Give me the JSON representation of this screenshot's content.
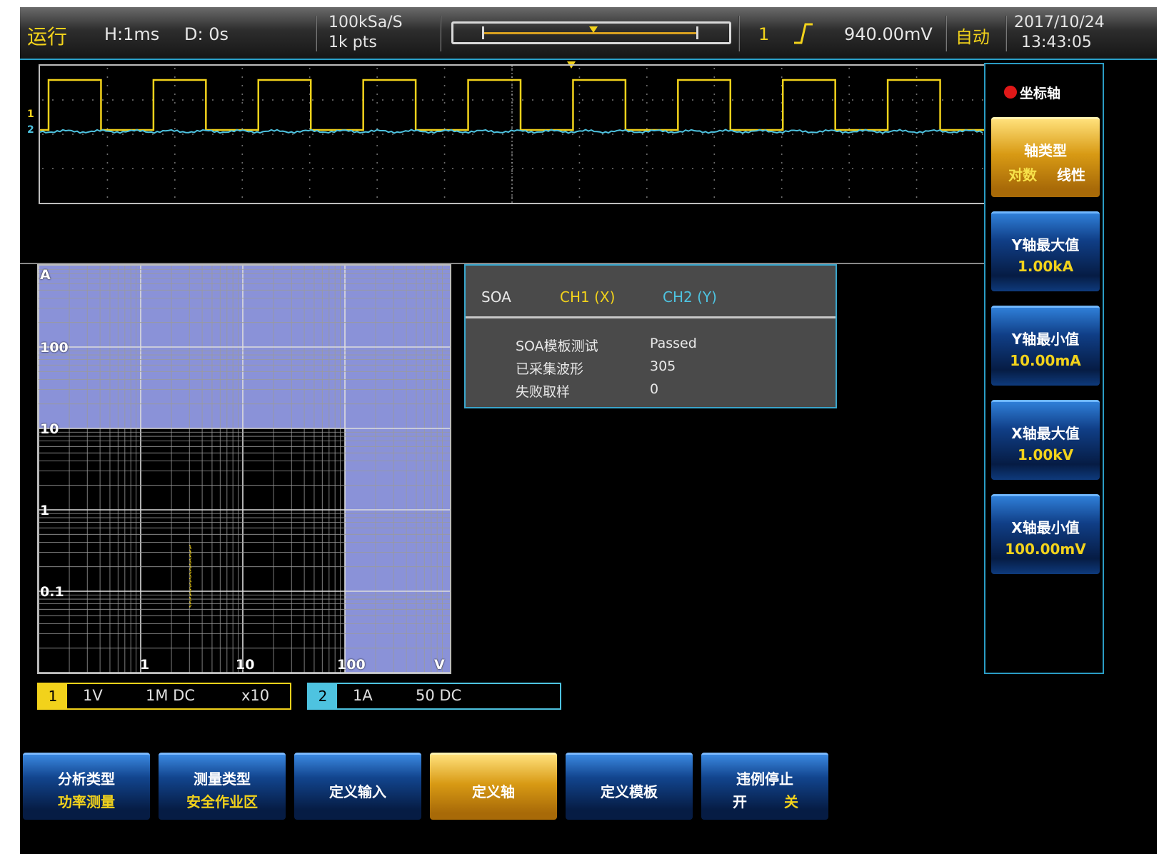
{
  "status_bar": {
    "run_state": "运行",
    "horizontal_scale": "H:1ms",
    "delay": "D: 0s",
    "sample_rate": "100kSa/S",
    "memory_depth": "1k pts",
    "trigger_source": "1",
    "trigger_level": "940.00mV",
    "trigger_mode": "自动",
    "date": "2017/10/24",
    "time": "13:43:05",
    "icons": [
      "memory-position-bar",
      "rising-edge-icon"
    ]
  },
  "waveform": {
    "ch1_marker": "1",
    "ch2_marker": "2",
    "ch1_color": "#f2d21b",
    "ch2_color": "#4ec3e0",
    "ch1_pulse_count": 9
  },
  "soa_plot": {
    "y_unit": "A",
    "x_unit": "V",
    "y_ticks": [
      "100",
      "10",
      "1",
      "0.1"
    ],
    "x_ticks": [
      "1",
      "10",
      "100"
    ],
    "x_scale": "log",
    "y_scale": "log",
    "pass_region_color": "#8a92d8"
  },
  "soa_panel": {
    "title": "SOA",
    "ch1_label": "CH1 (X)",
    "ch2_label": "CH2 (Y)",
    "rows": [
      {
        "label": "SOA模板测试",
        "value": "Passed"
      },
      {
        "label": "已采集波形",
        "value": "305"
      },
      {
        "label": "失败取样",
        "value": "0"
      }
    ]
  },
  "channels": {
    "ch1": {
      "num": "1",
      "scale": "1V",
      "coupling": "1M DC",
      "probe": "x10"
    },
    "ch2": {
      "num": "2",
      "scale": "1A",
      "coupling": "50 DC"
    }
  },
  "right_menu": {
    "title": "坐标轴",
    "axis_type": {
      "label": "轴类型",
      "opt_a": "对数",
      "opt_b": "线性"
    },
    "y_max": {
      "label": "Y轴最大值",
      "value": "1.00kA"
    },
    "y_min": {
      "label": "Y轴最小值",
      "value": "10.00mA"
    },
    "x_max": {
      "label": "X轴最大值",
      "value": "1.00kV"
    },
    "x_min": {
      "label": "X轴最小值",
      "value": "100.00mV"
    }
  },
  "bottom_menu": {
    "analysis": {
      "label": "分析类型",
      "value": "功率测量"
    },
    "measure": {
      "label": "测量类型",
      "value": "安全作业区"
    },
    "define_input": "定义输入",
    "define_axis": "定义轴",
    "define_template": "定义模板",
    "violation_stop": {
      "label": "违例停止",
      "on": "开",
      "off": "关"
    }
  }
}
